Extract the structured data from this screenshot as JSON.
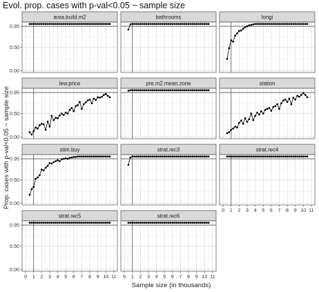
{
  "chart_data": {
    "type": "line",
    "title": "Evol. prop. cases with p-val<0.05 ~ sample size",
    "xlabel": "Sample size (in thousands)",
    "ylabel": "Prop. cases with p-val<0.05 ~ sample size",
    "xlim": [
      0,
      11
    ],
    "ylim": [
      0,
      1
    ],
    "x_ticks": [
      0,
      1,
      2,
      3,
      4,
      5,
      6,
      7,
      8,
      9,
      10,
      11
    ],
    "x_tick_labels": [
      "0",
      "1",
      "2",
      "3",
      "4",
      "5",
      "6",
      "7",
      "8",
      "9",
      "10",
      "11"
    ],
    "y_ticks": [
      0,
      0.5,
      0.95
    ],
    "y_tick_labels": [
      "0.00",
      "0.50",
      "0.95"
    ],
    "reference_line_y": 0.95,
    "reference_line_x": 1,
    "grid": true,
    "facets": [
      {
        "label": "area.build.m2",
        "x": [
          0.5,
          0.75,
          1.0,
          1.25,
          1.5,
          1.75,
          2.0,
          2.25,
          2.5,
          2.75,
          3.0,
          3.25,
          3.5,
          3.75,
          4.0,
          4.25,
          4.5,
          4.75,
          5.0,
          5.25,
          5.5,
          5.75,
          6.0,
          6.25,
          6.5,
          6.75,
          7.0,
          7.25,
          7.5,
          7.75,
          8.0,
          8.25,
          8.5,
          8.75,
          9.0,
          9.25,
          9.5,
          9.75,
          10.0,
          10.25,
          10.5
        ],
        "values": [
          1.0,
          1.0,
          1.0,
          1.0,
          1.0,
          1.0,
          1.0,
          1.0,
          1.0,
          1.0,
          1.0,
          1.0,
          1.0,
          1.0,
          1.0,
          1.0,
          1.0,
          1.0,
          1.0,
          1.0,
          1.0,
          1.0,
          1.0,
          1.0,
          1.0,
          1.0,
          1.0,
          1.0,
          1.0,
          1.0,
          1.0,
          1.0,
          1.0,
          1.0,
          1.0,
          1.0,
          1.0,
          1.0,
          1.0,
          1.0,
          1.0
        ]
      },
      {
        "label": "bathrooms",
        "x": [
          0.5,
          0.75,
          1.0,
          1.25,
          1.5,
          1.75,
          2.0,
          2.25,
          2.5,
          2.75,
          3.0,
          3.25,
          3.5,
          3.75,
          4.0,
          4.25,
          4.5,
          4.75,
          5.0,
          5.25,
          5.5,
          5.75,
          6.0,
          6.25,
          6.5,
          6.75,
          7.0,
          7.25,
          7.5,
          7.75,
          8.0,
          8.25,
          8.5,
          8.75,
          9.0,
          9.25,
          9.5,
          9.75,
          10.0,
          10.25,
          10.5
        ],
        "values": [
          0.88,
          0.99,
          1.0,
          1.0,
          1.0,
          1.0,
          1.0,
          1.0,
          1.0,
          1.0,
          1.0,
          1.0,
          1.0,
          1.0,
          1.0,
          1.0,
          1.0,
          1.0,
          1.0,
          1.0,
          1.0,
          1.0,
          1.0,
          1.0,
          1.0,
          1.0,
          1.0,
          1.0,
          1.0,
          1.0,
          1.0,
          1.0,
          1.0,
          1.0,
          1.0,
          1.0,
          1.0,
          1.0,
          1.0,
          1.0,
          1.0
        ]
      },
      {
        "label": "longi",
        "x": [
          0.5,
          0.75,
          1.0,
          1.25,
          1.5,
          1.75,
          2.0,
          2.25,
          2.5,
          2.75,
          3.0,
          3.25,
          3.5,
          3.75,
          4.0,
          4.25,
          4.5,
          4.75,
          5.0,
          5.25,
          5.5,
          5.75,
          6.0,
          6.25,
          6.5,
          6.75,
          7.0,
          7.25,
          7.5,
          7.75,
          8.0,
          8.25,
          8.5,
          8.75,
          9.0,
          9.25,
          9.5,
          9.75,
          10.0,
          10.25,
          10.5
        ],
        "values": [
          0.25,
          0.48,
          0.65,
          0.62,
          0.75,
          0.8,
          0.85,
          0.86,
          0.9,
          0.93,
          0.95,
          0.97,
          0.98,
          0.99,
          1.0,
          1.0,
          1.0,
          1.0,
          1.0,
          1.0,
          1.0,
          1.0,
          1.0,
          1.0,
          1.0,
          1.0,
          1.0,
          1.0,
          1.0,
          1.0,
          1.0,
          1.0,
          1.0,
          1.0,
          1.0,
          1.0,
          1.0,
          1.0,
          1.0,
          1.0,
          1.0
        ]
      },
      {
        "label": "lew.price",
        "x": [
          0.5,
          0.75,
          1.0,
          1.25,
          1.5,
          1.75,
          2.0,
          2.25,
          2.5,
          2.75,
          3.0,
          3.25,
          3.5,
          3.75,
          4.0,
          4.25,
          4.5,
          4.75,
          5.0,
          5.25,
          5.5,
          5.75,
          6.0,
          6.25,
          6.5,
          6.75,
          7.0,
          7.25,
          7.5,
          7.75,
          8.0,
          8.25,
          8.5,
          8.75,
          9.0,
          9.25,
          9.5,
          9.75,
          10.0,
          10.25,
          10.5
        ],
        "values": [
          0.1,
          0.05,
          0.12,
          0.2,
          0.18,
          0.25,
          0.28,
          0.27,
          0.15,
          0.33,
          0.22,
          0.45,
          0.36,
          0.41,
          0.4,
          0.46,
          0.5,
          0.47,
          0.52,
          0.5,
          0.58,
          0.62,
          0.55,
          0.66,
          0.68,
          0.75,
          0.6,
          0.7,
          0.74,
          0.78,
          0.8,
          0.72,
          0.82,
          0.79,
          0.85,
          0.84,
          0.86,
          0.9,
          0.92,
          0.88,
          0.85
        ]
      },
      {
        "label": "pre.m2.mean.zone",
        "x": [
          0.5,
          0.75,
          1.0,
          1.25,
          1.5,
          1.75,
          2.0,
          2.25,
          2.5,
          2.75,
          3.0,
          3.25,
          3.5,
          3.75,
          4.0,
          4.25,
          4.5,
          4.75,
          5.0,
          5.25,
          5.5,
          5.75,
          6.0,
          6.25,
          6.5,
          6.75,
          7.0,
          7.25,
          7.5,
          7.75,
          8.0,
          8.25,
          8.5,
          8.75,
          9.0,
          9.25,
          9.5,
          9.75,
          10.0,
          10.25,
          10.5
        ],
        "values": [
          0.99,
          1.0,
          1.0,
          1.0,
          1.0,
          1.0,
          1.0,
          1.0,
          1.0,
          1.0,
          1.0,
          1.0,
          1.0,
          1.0,
          1.0,
          1.0,
          1.0,
          1.0,
          1.0,
          1.0,
          1.0,
          1.0,
          1.0,
          1.0,
          1.0,
          1.0,
          1.0,
          1.0,
          1.0,
          1.0,
          1.0,
          1.0,
          1.0,
          1.0,
          1.0,
          1.0,
          1.0,
          1.0,
          1.0,
          1.0,
          1.0
        ]
      },
      {
        "label": "station",
        "x": [
          0.5,
          0.75,
          1.0,
          1.25,
          1.5,
          1.75,
          2.0,
          2.25,
          2.5,
          2.75,
          3.0,
          3.25,
          3.5,
          3.75,
          4.0,
          4.25,
          4.5,
          4.75,
          5.0,
          5.25,
          5.5,
          5.75,
          6.0,
          6.25,
          6.5,
          6.75,
          7.0,
          7.25,
          7.5,
          7.75,
          8.0,
          8.25,
          8.5,
          8.75,
          9.0,
          9.25,
          9.5,
          9.75,
          10.0,
          10.25,
          10.5
        ],
        "values": [
          0.08,
          0.1,
          0.15,
          0.18,
          0.22,
          0.2,
          0.3,
          0.35,
          0.28,
          0.4,
          0.32,
          0.38,
          0.5,
          0.36,
          0.45,
          0.52,
          0.48,
          0.55,
          0.5,
          0.58,
          0.6,
          0.62,
          0.56,
          0.64,
          0.66,
          0.7,
          0.6,
          0.72,
          0.78,
          0.8,
          0.75,
          0.82,
          0.7,
          0.84,
          0.8,
          0.88,
          0.86,
          0.9,
          0.94,
          0.9,
          0.85
        ]
      },
      {
        "label": "stim.buy",
        "x": [
          0.5,
          0.75,
          1.0,
          1.25,
          1.5,
          1.75,
          2.0,
          2.25,
          2.5,
          2.75,
          3.0,
          3.25,
          3.5,
          3.75,
          4.0,
          4.25,
          4.5,
          4.75,
          5.0,
          5.25,
          5.5,
          5.75,
          6.0,
          6.25,
          6.5,
          6.75,
          7.0,
          7.25,
          7.5,
          7.75,
          8.0,
          8.25,
          8.5,
          8.75,
          9.0,
          9.25,
          9.5,
          9.75,
          10.0,
          10.25,
          10.5
        ],
        "values": [
          0.18,
          0.3,
          0.35,
          0.52,
          0.55,
          0.6,
          0.72,
          0.7,
          0.76,
          0.8,
          0.86,
          0.85,
          0.88,
          0.9,
          0.92,
          0.9,
          0.94,
          0.95,
          0.96,
          0.95,
          0.97,
          0.98,
          0.99,
          0.99,
          1.0,
          1.0,
          1.0,
          1.0,
          1.0,
          1.0,
          1.0,
          1.0,
          1.0,
          1.0,
          1.0,
          1.0,
          1.0,
          1.0,
          1.0,
          1.0,
          1.0
        ]
      },
      {
        "label": "strat.rec3",
        "x": [
          0.5,
          0.75,
          1.0,
          1.25,
          1.5,
          1.75,
          2.0,
          2.25,
          2.5,
          2.75,
          3.0,
          3.25,
          3.5,
          3.75,
          4.0,
          4.25,
          4.5,
          4.75,
          5.0,
          5.25,
          5.5,
          5.75,
          6.0,
          6.25,
          6.5,
          6.75,
          7.0,
          7.25,
          7.5,
          7.75,
          8.0,
          8.25,
          8.5,
          8.75,
          9.0,
          9.25,
          9.5,
          9.75,
          10.0,
          10.25,
          10.5
        ],
        "values": [
          0.82,
          0.98,
          1.0,
          1.0,
          1.0,
          1.0,
          1.0,
          1.0,
          1.0,
          1.0,
          1.0,
          1.0,
          1.0,
          1.0,
          1.0,
          1.0,
          1.0,
          1.0,
          1.0,
          1.0,
          1.0,
          1.0,
          1.0,
          1.0,
          1.0,
          1.0,
          1.0,
          1.0,
          1.0,
          1.0,
          1.0,
          1.0,
          1.0,
          1.0,
          1.0,
          1.0,
          1.0,
          1.0,
          1.0,
          1.0,
          1.0
        ]
      },
      {
        "label": "strat.rec4",
        "x": [
          0.5,
          0.75,
          1.0,
          1.25,
          1.5,
          1.75,
          2.0,
          2.25,
          2.5,
          2.75,
          3.0,
          3.25,
          3.5,
          3.75,
          4.0,
          4.25,
          4.5,
          4.75,
          5.0,
          5.25,
          5.5,
          5.75,
          6.0,
          6.25,
          6.5,
          6.75,
          7.0,
          7.25,
          7.5,
          7.75,
          8.0,
          8.25,
          8.5,
          8.75,
          9.0,
          9.25,
          9.5,
          9.75,
          10.0,
          10.25,
          10.5
        ],
        "values": [
          1.0,
          1.0,
          1.0,
          1.0,
          1.0,
          1.0,
          1.0,
          1.0,
          1.0,
          1.0,
          1.0,
          1.0,
          1.0,
          1.0,
          1.0,
          1.0,
          1.0,
          1.0,
          1.0,
          1.0,
          1.0,
          1.0,
          1.0,
          1.0,
          1.0,
          1.0,
          1.0,
          1.0,
          1.0,
          1.0,
          1.0,
          1.0,
          1.0,
          1.0,
          1.0,
          1.0,
          1.0,
          1.0,
          1.0,
          1.0,
          1.0
        ]
      },
      {
        "label": "strat.rec5",
        "x": [
          0.5,
          0.75,
          1.0,
          1.25,
          1.5,
          1.75,
          2.0,
          2.25,
          2.5,
          2.75,
          3.0,
          3.25,
          3.5,
          3.75,
          4.0,
          4.25,
          4.5,
          4.75,
          5.0,
          5.25,
          5.5,
          5.75,
          6.0,
          6.25,
          6.5,
          6.75,
          7.0,
          7.25,
          7.5,
          7.75,
          8.0,
          8.25,
          8.5,
          8.75,
          9.0,
          9.25,
          9.5,
          9.75,
          10.0,
          10.25,
          10.5
        ],
        "values": [
          1.0,
          1.0,
          1.0,
          1.0,
          1.0,
          1.0,
          1.0,
          1.0,
          1.0,
          1.0,
          1.0,
          1.0,
          1.0,
          1.0,
          1.0,
          1.0,
          1.0,
          1.0,
          1.0,
          1.0,
          1.0,
          1.0,
          1.0,
          1.0,
          1.0,
          1.0,
          1.0,
          1.0,
          1.0,
          1.0,
          1.0,
          1.0,
          1.0,
          1.0,
          1.0,
          1.0,
          1.0,
          1.0,
          1.0,
          1.0,
          1.0
        ]
      },
      {
        "label": "strat.rec6",
        "x": [
          0.5,
          0.75,
          1.0,
          1.25,
          1.5,
          1.75,
          2.0,
          2.25,
          2.5,
          2.75,
          3.0,
          3.25,
          3.5,
          3.75,
          4.0,
          4.25,
          4.5,
          4.75,
          5.0,
          5.25,
          5.5,
          5.75,
          6.0,
          6.25,
          6.5,
          6.75,
          7.0,
          7.25,
          7.5,
          7.75,
          8.0,
          8.25,
          8.5,
          8.75,
          9.0,
          9.25,
          9.5,
          9.75,
          10.0,
          10.25,
          10.5
        ],
        "values": [
          1.0,
          1.0,
          1.0,
          1.0,
          1.0,
          1.0,
          1.0,
          1.0,
          1.0,
          1.0,
          1.0,
          1.0,
          1.0,
          1.0,
          1.0,
          1.0,
          1.0,
          1.0,
          1.0,
          1.0,
          1.0,
          1.0,
          1.0,
          1.0,
          1.0,
          1.0,
          1.0,
          1.0,
          1.0,
          1.0,
          1.0,
          1.0,
          1.0,
          1.0,
          1.0,
          1.0,
          1.0,
          1.0,
          1.0,
          1.0,
          1.0
        ]
      }
    ]
  },
  "colors": {
    "background": "#ffffff",
    "panel_background": "#ffffff",
    "panel_border": "#333333",
    "strip_background": "#d9d9d9",
    "grid_major": "#d4d4d4",
    "grid_minor": "#ececec",
    "series": "#000000",
    "reference_line": "#555555"
  }
}
